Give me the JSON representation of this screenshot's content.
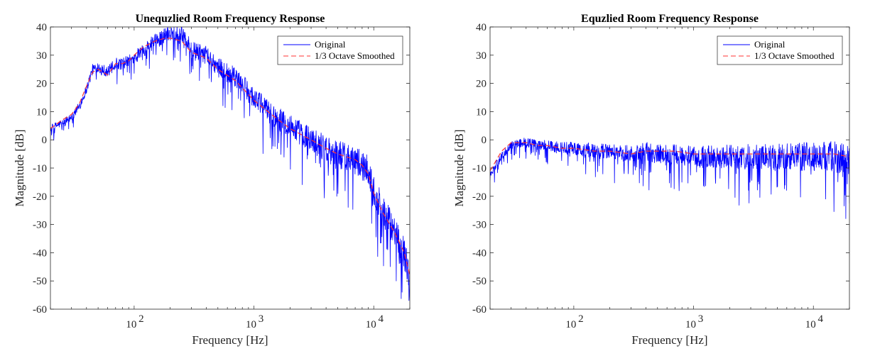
{
  "chart_data": [
    {
      "type": "line",
      "title": "Unequzlied Room Frequency Response",
      "xlabel": "Frequency [Hz]",
      "ylabel": "Magnitude [dB]",
      "xscale": "log",
      "xlim": [
        20,
        20000
      ],
      "ylim": [
        -60,
        40
      ],
      "yticks": [
        "-60",
        "-50",
        "-40",
        "-30",
        "-20",
        "-10",
        "0",
        "10",
        "20",
        "30",
        "40"
      ],
      "xticks": [
        {
          "value": 100,
          "base": "10",
          "exp": "2"
        },
        {
          "value": 1000,
          "base": "10",
          "exp": "3"
        },
        {
          "value": 10000,
          "base": "10",
          "exp": "4"
        }
      ],
      "legend": {
        "placement": "top-right",
        "entries": [
          "Original",
          "1/3 Octave Smoothed"
        ]
      },
      "grid": false,
      "series": [
        {
          "name": "Original",
          "color": "#0000ff",
          "style": "solid",
          "x": [
            20,
            25,
            30,
            35,
            40,
            45,
            50,
            60,
            70,
            80,
            90,
            100,
            120,
            150,
            180,
            200,
            250,
            300,
            400,
            500,
            700,
            1000,
            1500,
            2000,
            3000,
            4000,
            5000,
            7000,
            8000,
            9000,
            10000,
            12000,
            15000,
            18000,
            20000
          ],
          "y": [
            4,
            6,
            8,
            12,
            18,
            25,
            26,
            24,
            27,
            27,
            28,
            29,
            32,
            35,
            37,
            38,
            38,
            32,
            30,
            26,
            22,
            15,
            8,
            5,
            0,
            -3,
            -5,
            -7,
            -9,
            -11,
            -18,
            -25,
            -33,
            -40,
            -50
          ]
        },
        {
          "name": "1/3 Octave Smoothed",
          "color": "#ff3333",
          "style": "dashed",
          "x": [
            20,
            25,
            30,
            35,
            40,
            45,
            50,
            60,
            70,
            80,
            90,
            100,
            120,
            150,
            180,
            200,
            250,
            300,
            400,
            500,
            700,
            1000,
            1500,
            2000,
            3000,
            4000,
            5000,
            7000,
            8000,
            9000,
            10000,
            12000,
            15000,
            18000,
            20000
          ],
          "y": [
            4,
            7,
            9,
            13,
            19,
            24,
            25,
            23,
            27,
            27,
            28,
            30,
            33,
            35,
            36,
            36,
            35,
            31,
            29,
            25,
            21,
            14,
            8,
            4,
            0,
            -3,
            -5,
            -7,
            -9,
            -12,
            -19,
            -26,
            -33,
            -40,
            -48
          ]
        }
      ]
    },
    {
      "type": "line",
      "title": "Equzlied Room Frequency Response",
      "xlabel": "Frequency [Hz]",
      "ylabel": "Magnitude [dB]",
      "xscale": "log",
      "xlim": [
        20,
        20000
      ],
      "ylim": [
        -60,
        40
      ],
      "yticks": [
        "-60",
        "-50",
        "-40",
        "-30",
        "-20",
        "-10",
        "0",
        "10",
        "20",
        "30",
        "40"
      ],
      "xticks": [
        {
          "value": 100,
          "base": "10",
          "exp": "2"
        },
        {
          "value": 1000,
          "base": "10",
          "exp": "3"
        },
        {
          "value": 10000,
          "base": "10",
          "exp": "4"
        }
      ],
      "legend": {
        "placement": "top-right",
        "entries": [
          "Original",
          "1/3 Octave Smoothed"
        ]
      },
      "grid": false,
      "series": [
        {
          "name": "Original",
          "color": "#0000ff",
          "style": "solid",
          "x": [
            20,
            25,
            30,
            35,
            40,
            50,
            60,
            80,
            100,
            150,
            200,
            300,
            400,
            500,
            700,
            1000,
            1500,
            2000,
            3000,
            4000,
            5000,
            7000,
            10000,
            15000,
            20000
          ],
          "y": [
            -12,
            -6,
            -2,
            -1,
            -1,
            -2,
            -2,
            -3,
            -3,
            -4,
            -4,
            -5,
            -4,
            -5,
            -5,
            -6,
            -6,
            -6,
            -6,
            -6,
            -6,
            -6,
            -6,
            -6,
            -7
          ]
        },
        {
          "name": "1/3 Octave Smoothed",
          "color": "#ff3333",
          "style": "dashed",
          "x": [
            20,
            25,
            30,
            35,
            40,
            50,
            60,
            80,
            100,
            150,
            200,
            300,
            400,
            500,
            700,
            1000,
            1500,
            2000,
            3000,
            4000,
            5000,
            7000,
            10000,
            15000,
            20000
          ],
          "y": [
            -11,
            -4,
            -1,
            -1,
            -1,
            -2,
            -2,
            -3,
            -3,
            -4,
            -4,
            -5,
            -4,
            -4,
            -4,
            -5,
            -5,
            -5,
            -5,
            -5,
            -5,
            -5,
            -5,
            -5,
            -6
          ]
        }
      ]
    }
  ]
}
